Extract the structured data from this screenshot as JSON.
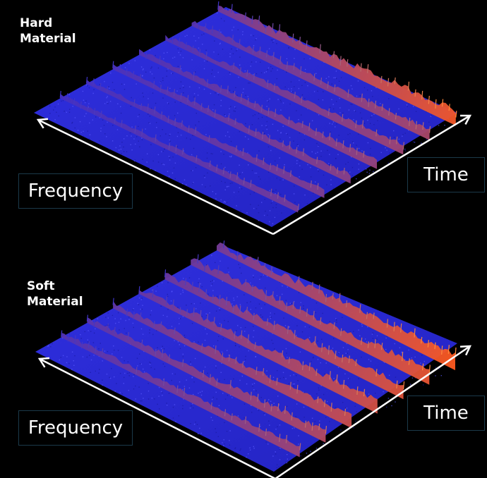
{
  "panels": [
    {
      "label_line1": "Hard",
      "label_line2": "Material",
      "x_axis_label": "Frequency",
      "y_axis_label": "Time",
      "surface_colors": {
        "low": "#2a2ad8",
        "high": "#ff5a1e"
      },
      "ridge_intensity": [
        0.35,
        0.4,
        0.45,
        0.5,
        0.55,
        0.6,
        0.95
      ]
    },
    {
      "label_line1": "Soft",
      "label_line2": "Material",
      "x_axis_label": "Frequency",
      "y_axis_label": "Time",
      "surface_colors": {
        "low": "#2a2ad8",
        "high": "#ff5a1e"
      },
      "ridge_intensity": [
        0.55,
        0.65,
        0.75,
        0.8,
        0.85,
        0.9,
        1.0
      ]
    }
  ]
}
